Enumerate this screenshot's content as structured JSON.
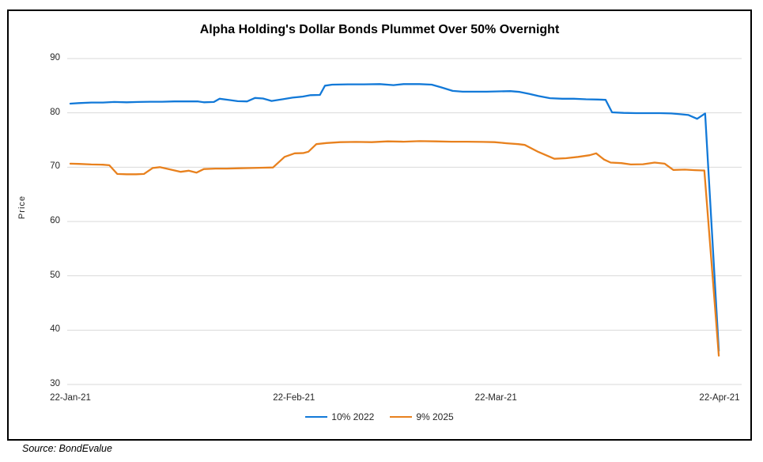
{
  "title": "Alpha Holding's Dollar Bonds Plummet Over 50% Overnight",
  "source_note": "Source: BondEvalue",
  "colors": {
    "series_blue": "#1279d8",
    "series_orange": "#e8811e",
    "gridline": "#d9d9d9",
    "tick_text": "#262626",
    "border": "#000000"
  },
  "chart_data": {
    "type": "line",
    "title": "Alpha Holding's Dollar Bonds Plummet Over 50% Overnight",
    "xlabel": "",
    "ylabel": "Price",
    "ylim": [
      30,
      90
    ],
    "x_range_days": [
      0,
      90
    ],
    "x_unit": "days since 22-Jan-21",
    "grid": "horizontal-only",
    "legend_position": "bottom-center",
    "y_ticks": [
      90,
      80,
      70,
      60,
      50,
      40,
      30
    ],
    "x_ticks": [
      {
        "day": 0,
        "label": "22-Jan-21"
      },
      {
        "day": 31,
        "label": "22-Feb-21"
      },
      {
        "day": 59,
        "label": "22-Mar-21"
      },
      {
        "day": 90,
        "label": "22-Apr-21"
      }
    ],
    "series": [
      {
        "name": "10% 2022",
        "color": "#1279d8",
        "points": [
          [
            0,
            81.7
          ],
          [
            1.2,
            81.8
          ],
          [
            2.9,
            81.9
          ],
          [
            4.5,
            81.9
          ],
          [
            6.1,
            82.0
          ],
          [
            7.8,
            81.95
          ],
          [
            9.4,
            82.0
          ],
          [
            11.1,
            82.05
          ],
          [
            12.7,
            82.05
          ],
          [
            14.4,
            82.1
          ],
          [
            16,
            82.1
          ],
          [
            17.7,
            82.1
          ],
          [
            18.5,
            81.95
          ],
          [
            19.9,
            82.0
          ],
          [
            20.7,
            82.6
          ],
          [
            22.1,
            82.35
          ],
          [
            23.2,
            82.15
          ],
          [
            24.5,
            82.1
          ],
          [
            25.6,
            82.75
          ],
          [
            26.7,
            82.65
          ],
          [
            27.9,
            82.2
          ],
          [
            29.4,
            82.5
          ],
          [
            30.8,
            82.8
          ],
          [
            32.2,
            83.0
          ],
          [
            33.3,
            83.25
          ],
          [
            34.6,
            83.3
          ],
          [
            35.3,
            85.0
          ],
          [
            36.3,
            85.2
          ],
          [
            38.5,
            85.25
          ],
          [
            40.7,
            85.25
          ],
          [
            42.9,
            85.3
          ],
          [
            44.8,
            85.1
          ],
          [
            46.2,
            85.3
          ],
          [
            48.4,
            85.3
          ],
          [
            50.1,
            85.2
          ],
          [
            51.4,
            84.7
          ],
          [
            53,
            84.05
          ],
          [
            54.4,
            83.9
          ],
          [
            56.1,
            83.9
          ],
          [
            57.7,
            83.9
          ],
          [
            59.4,
            83.95
          ],
          [
            61,
            84.0
          ],
          [
            62.3,
            83.85
          ],
          [
            63.6,
            83.5
          ],
          [
            64.9,
            83.1
          ],
          [
            66.5,
            82.7
          ],
          [
            68.2,
            82.6
          ],
          [
            69.8,
            82.6
          ],
          [
            71.5,
            82.5
          ],
          [
            73.1,
            82.45
          ],
          [
            74.2,
            82.4
          ],
          [
            75.1,
            80.1
          ],
          [
            76.7,
            80.0
          ],
          [
            78.4,
            79.95
          ],
          [
            80,
            79.95
          ],
          [
            81.7,
            79.95
          ],
          [
            83.3,
            79.9
          ],
          [
            84.6,
            79.75
          ],
          [
            85.7,
            79.6
          ],
          [
            86.9,
            78.9
          ],
          [
            88,
            79.9
          ],
          [
            89.9,
            36.2
          ]
        ]
      },
      {
        "name": "9% 2025",
        "color": "#e8811e",
        "points": [
          [
            0,
            70.65
          ],
          [
            1.2,
            70.6
          ],
          [
            2.9,
            70.5
          ],
          [
            4.5,
            70.45
          ],
          [
            5.4,
            70.35
          ],
          [
            6.5,
            68.75
          ],
          [
            7.8,
            68.7
          ],
          [
            9.1,
            68.7
          ],
          [
            10.2,
            68.75
          ],
          [
            11.4,
            69.85
          ],
          [
            12.4,
            70.0
          ],
          [
            13.8,
            69.6
          ],
          [
            15.3,
            69.15
          ],
          [
            16.4,
            69.35
          ],
          [
            17.5,
            69.0
          ],
          [
            18.5,
            69.65
          ],
          [
            20.1,
            69.75
          ],
          [
            21.7,
            69.75
          ],
          [
            23.4,
            69.8
          ],
          [
            25,
            69.85
          ],
          [
            26.7,
            69.9
          ],
          [
            28.1,
            69.95
          ],
          [
            29.7,
            71.9
          ],
          [
            31.1,
            72.55
          ],
          [
            32.3,
            72.6
          ],
          [
            33,
            72.85
          ],
          [
            34.1,
            74.25
          ],
          [
            35.5,
            74.45
          ],
          [
            37.4,
            74.6
          ],
          [
            39.6,
            74.65
          ],
          [
            41.8,
            74.6
          ],
          [
            44,
            74.75
          ],
          [
            46.2,
            74.7
          ],
          [
            48.4,
            74.8
          ],
          [
            50.6,
            74.75
          ],
          [
            52.8,
            74.7
          ],
          [
            55,
            74.7
          ],
          [
            57.2,
            74.65
          ],
          [
            58.8,
            74.6
          ],
          [
            60.5,
            74.4
          ],
          [
            62.1,
            74.25
          ],
          [
            63,
            74.1
          ],
          [
            64.9,
            72.8
          ],
          [
            67.1,
            71.55
          ],
          [
            68.7,
            71.65
          ],
          [
            70.4,
            71.9
          ],
          [
            72,
            72.2
          ],
          [
            72.9,
            72.55
          ],
          [
            74,
            71.4
          ],
          [
            74.9,
            70.85
          ],
          [
            76.4,
            70.75
          ],
          [
            77.7,
            70.5
          ],
          [
            79.4,
            70.55
          ],
          [
            81,
            70.85
          ],
          [
            82.4,
            70.65
          ],
          [
            83.6,
            69.5
          ],
          [
            85.2,
            69.55
          ],
          [
            86.6,
            69.45
          ],
          [
            87.9,
            69.4
          ],
          [
            89.9,
            35.3
          ]
        ]
      }
    ]
  }
}
